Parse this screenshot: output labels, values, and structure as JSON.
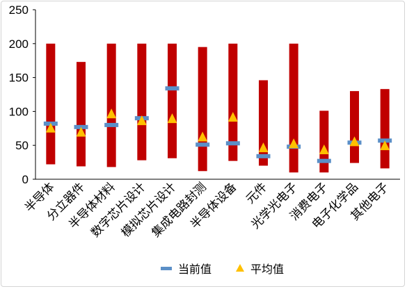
{
  "chart_data": {
    "type": "range-bar",
    "categories": [
      "半导体",
      "分立器件",
      "半导体材料",
      "数字芯片设计",
      "模拟芯片设计",
      "集成电路封测",
      "半导体设备",
      "元件",
      "光学光电子",
      "消费电子",
      "电子化学品",
      "其他电子"
    ],
    "range_low": [
      22,
      19,
      18,
      28,
      31,
      12,
      27,
      20,
      10,
      10,
      24,
      16
    ],
    "range_high": [
      200,
      173,
      200,
      200,
      200,
      195,
      200,
      146,
      200,
      101,
      130,
      133
    ],
    "series": [
      {
        "name": "当前值",
        "marker": "bar-dash",
        "color": "#5b8fc7",
        "values": [
          82,
          77,
          80,
          90,
          134,
          51,
          53,
          34,
          48,
          27,
          54,
          57
        ]
      },
      {
        "name": "平均值",
        "marker": "triangle",
        "color": "#ffc000",
        "values": [
          75,
          69,
          96,
          86,
          89,
          62,
          91,
          46,
          52,
          43,
          55,
          49
        ]
      }
    ],
    "range_color": "#c00000",
    "ylim": [
      0,
      250
    ],
    "yticks": [
      0,
      50,
      100,
      150,
      200,
      250
    ],
    "xlabel": "",
    "ylabel": "",
    "title": "",
    "grid": false,
    "legend_position": "bottom"
  }
}
